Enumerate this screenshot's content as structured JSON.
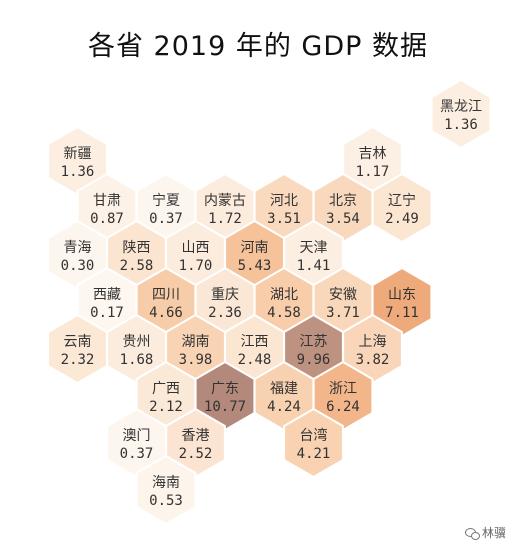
{
  "title": "各省 2019 年的 GDP 数据",
  "watermark": "林骥",
  "colors": {
    "low": "#fdf6ef",
    "high": "#b58b7c",
    "stroke": "#ffffff"
  },
  "chart_data": {
    "type": "heatmap",
    "title": "各省 2019 年的 GDP 数据",
    "unit": "",
    "cells": [
      {
        "name": "黑龙江",
        "value": 1.36,
        "col": 6,
        "row": 0
      },
      {
        "name": "新疆",
        "value": 1.36,
        "col": 0,
        "row": 1
      },
      {
        "name": "吉林",
        "value": 1.17,
        "col": 5,
        "row": 1
      },
      {
        "name": "甘肃",
        "value": 0.87,
        "col": 0,
        "row": 2
      },
      {
        "name": "宁夏",
        "value": 0.37,
        "col": 1,
        "row": 2
      },
      {
        "name": "内蒙古",
        "value": 1.72,
        "col": 2,
        "row": 2
      },
      {
        "name": "河北",
        "value": 3.51,
        "col": 3,
        "row": 2
      },
      {
        "name": "北京",
        "value": 3.54,
        "col": 4,
        "row": 2
      },
      {
        "name": "辽宁",
        "value": 2.49,
        "col": 5,
        "row": 2
      },
      {
        "name": "青海",
        "value": 0.3,
        "col": 0,
        "row": 3
      },
      {
        "name": "陕西",
        "value": 2.58,
        "col": 1,
        "row": 3
      },
      {
        "name": "山西",
        "value": 1.7,
        "col": 2,
        "row": 3
      },
      {
        "name": "河南",
        "value": 5.43,
        "col": 3,
        "row": 3
      },
      {
        "name": "天津",
        "value": 1.41,
        "col": 4,
        "row": 3
      },
      {
        "name": "西藏",
        "value": 0.17,
        "col": 0,
        "row": 4
      },
      {
        "name": "四川",
        "value": 4.66,
        "col": 1,
        "row": 4
      },
      {
        "name": "重庆",
        "value": 2.36,
        "col": 2,
        "row": 4
      },
      {
        "name": "湖北",
        "value": 4.58,
        "col": 3,
        "row": 4
      },
      {
        "name": "安徽",
        "value": 3.71,
        "col": 4,
        "row": 4
      },
      {
        "name": "山东",
        "value": 7.11,
        "col": 5,
        "row": 4
      },
      {
        "name": "云南",
        "value": 2.32,
        "col": 0,
        "row": 5
      },
      {
        "name": "贵州",
        "value": 1.68,
        "col": 1,
        "row": 5
      },
      {
        "name": "湖南",
        "value": 3.98,
        "col": 2,
        "row": 5
      },
      {
        "name": "江西",
        "value": 2.48,
        "col": 3,
        "row": 5
      },
      {
        "name": "江苏",
        "value": 9.96,
        "col": 4,
        "row": 5
      },
      {
        "name": "上海",
        "value": 3.82,
        "col": 5,
        "row": 5
      },
      {
        "name": "广西",
        "value": 2.12,
        "col": 1,
        "row": 6
      },
      {
        "name": "广东",
        "value": 10.77,
        "col": 2,
        "row": 6
      },
      {
        "name": "福建",
        "value": 4.24,
        "col": 3,
        "row": 6
      },
      {
        "name": "浙江",
        "value": 6.24,
        "col": 4,
        "row": 6
      },
      {
        "name": "澳门",
        "value": 0.37,
        "col": 1,
        "row": 7
      },
      {
        "name": "香港",
        "value": 2.52,
        "col": 2,
        "row": 7
      },
      {
        "name": "台湾",
        "value": 4.21,
        "col": 4,
        "row": 7
      },
      {
        "name": "海南",
        "value": 0.53,
        "col": 1,
        "row": 8
      }
    ]
  }
}
